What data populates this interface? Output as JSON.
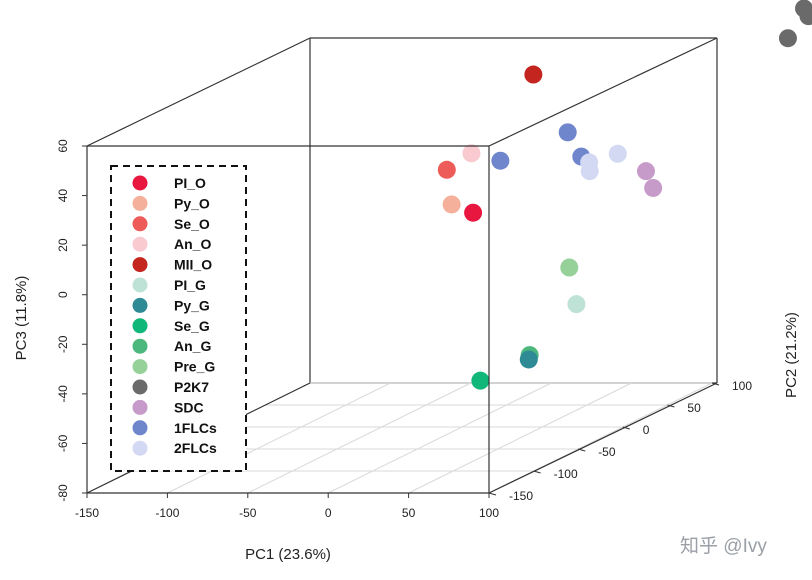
{
  "chart_data": {
    "type": "scatter",
    "projection": "3d",
    "xlabel": "PC1 (23.6%)",
    "ylabel": "PC2 (21.2%)",
    "zlabel": "PC3 (11.8%)",
    "x_ticks": [
      "-150",
      "-100",
      "-50",
      "0",
      "50",
      "100"
    ],
    "y_ticks": [
      "-150",
      "-100",
      "-50",
      "0",
      "50",
      "100"
    ],
    "z_ticks": [
      "60",
      "40",
      "20",
      "0",
      "-20",
      "-40",
      "-60",
      "-80"
    ],
    "legend_position": "left",
    "legend": [
      {
        "label": "PI_O",
        "color": "#E8173F"
      },
      {
        "label": "Py_O",
        "color": "#F4B09B"
      },
      {
        "label": "Se_O",
        "color": "#EE5C5A"
      },
      {
        "label": "An_O",
        "color": "#F9CACF"
      },
      {
        "label": "MII_O",
        "color": "#C4261F"
      },
      {
        "label": "PI_G",
        "color": "#BFE2D6"
      },
      {
        "label": "Py_G",
        "color": "#2E8B96"
      },
      {
        "label": "Se_G",
        "color": "#11B779"
      },
      {
        "label": "An_G",
        "color": "#4CB87E"
      },
      {
        "label": "Pre_G",
        "color": "#96D19A"
      },
      {
        "label": "P2K7",
        "color": "#6A6A6A"
      },
      {
        "label": "SDC",
        "color": "#C79BC9"
      },
      {
        "label": "1FLCs",
        "color": "#6F85CC"
      },
      {
        "label": "2FLCs",
        "color": "#D3D8F3"
      }
    ],
    "points": [
      {
        "group": "MII_O",
        "x": 0,
        "y": 80,
        "z": 48,
        "color": "#C4261F"
      },
      {
        "group": "An_O",
        "x": -8,
        "y": 25,
        "z": 26,
        "color": "#F9CACF"
      },
      {
        "group": "Se_O",
        "x": -15,
        "y": 10,
        "z": 22,
        "color": "#EE5C5A"
      },
      {
        "group": "Py_O",
        "x": -12,
        "y": 10,
        "z": 8,
        "color": "#F4B09B"
      },
      {
        "group": "PI_O",
        "x": 18,
        "y": -20,
        "z": 10,
        "color": "#E8173F"
      },
      {
        "group": "1FLCs",
        "x": 38,
        "y": 50,
        "z": 30,
        "color": "#6F85CC"
      },
      {
        "group": "1FLCs",
        "x": 52,
        "y": 40,
        "z": 22,
        "color": "#6F85CC"
      },
      {
        "group": "1FLCs",
        "x": 10,
        "y": 25,
        "z": 23,
        "color": "#6F85CC"
      },
      {
        "group": "2FLCs",
        "x": 68,
        "y": 52,
        "z": 21,
        "color": "#D3D8F3"
      },
      {
        "group": "2FLCs",
        "x": 58,
        "y": 38,
        "z": 20,
        "color": "#D3D8F3"
      },
      {
        "group": "2FLCs",
        "x": 60,
        "y": 35,
        "z": 17,
        "color": "#D3D8F3"
      },
      {
        "group": "SDC",
        "x": 95,
        "y": 35,
        "z": 17,
        "color": "#C79BC9"
      },
      {
        "group": "SDC",
        "x": 105,
        "y": 25,
        "z": 12,
        "color": "#C79BC9"
      },
      {
        "group": "P2K7",
        "x": 160,
        "y": 95,
        "z": 72,
        "color": "#6A6A6A"
      },
      {
        "group": "P2K7",
        "x": 160,
        "y": 100,
        "z": 68,
        "color": "#6A6A6A"
      },
      {
        "group": "P2K7",
        "x": 150,
        "y": 95,
        "z": 60,
        "color": "#6A6A6A"
      },
      {
        "group": "Pre_G",
        "x": 100,
        "y": -60,
        "z": -5,
        "color": "#96D19A"
      },
      {
        "group": "PI_G",
        "x": 110,
        "y": -70,
        "z": -18,
        "color": "#BFE2D6"
      },
      {
        "group": "An_G",
        "x": 92,
        "y": -90,
        "z": -35,
        "color": "#4CB87E"
      },
      {
        "group": "Py_G",
        "x": 97,
        "y": -100,
        "z": -35,
        "color": "#2E8B96"
      },
      {
        "group": "Se_G",
        "x": 78,
        "y": -120,
        "z": -40,
        "color": "#11B779"
      }
    ]
  },
  "watermark": "知乎 @Ivy"
}
